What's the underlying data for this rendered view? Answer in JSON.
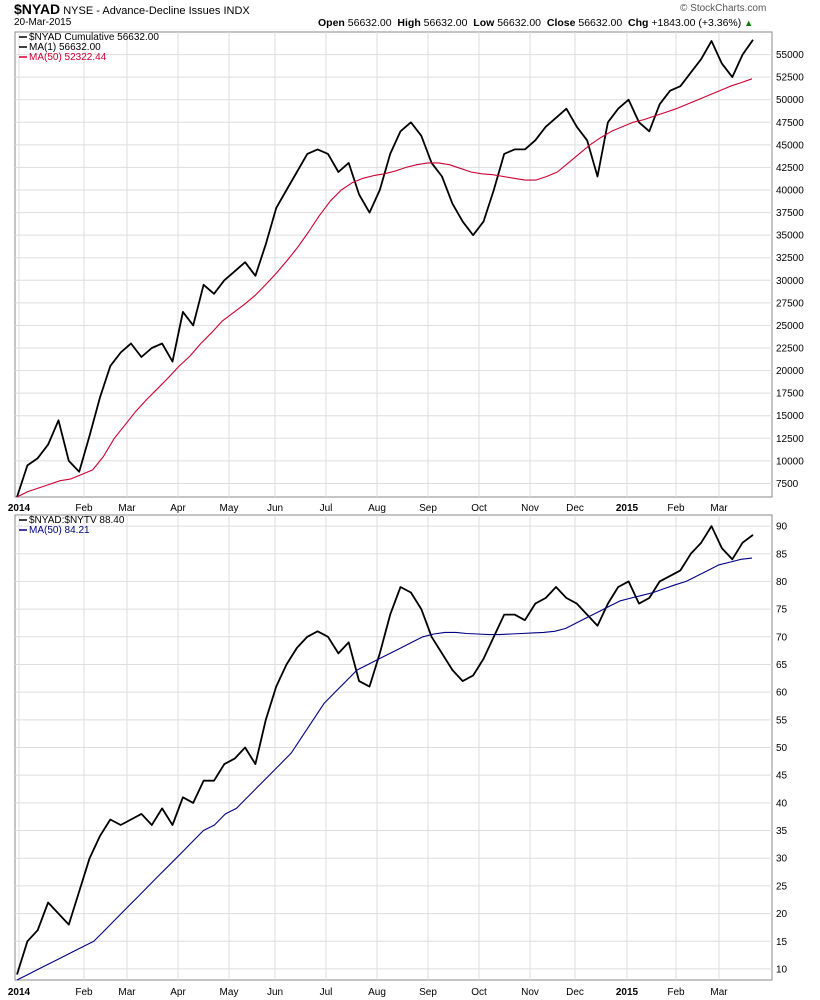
{
  "header": {
    "symbol": "$NYAD",
    "description": "NYSE - Advance-Decline Issues",
    "type": "INDX",
    "date": "20-Mar-2015",
    "open_label": "Open",
    "open": "56632.00",
    "high_label": "High",
    "high": "56632.00",
    "low_label": "Low",
    "low": "56632.00",
    "close_label": "Close",
    "close": "56632.00",
    "chg_label": "Chg",
    "chg": "+1843.00 (+3.36%)",
    "watermark": "© StockCharts.com"
  },
  "colors": {
    "price": "#000000",
    "ma_top": "#cc0033",
    "ma_bottom": "#000080",
    "grid": "#dddddd"
  },
  "chart_data": [
    {
      "type": "line",
      "legend": [
        "$NYAD Cumulative 56632.00",
        "MA(1) 56632.00",
        "MA(50) 52322.44"
      ],
      "ylim": [
        6000,
        57500
      ],
      "yticks": [
        7500,
        10000,
        12500,
        15000,
        17500,
        20000,
        22500,
        25000,
        27500,
        30000,
        32500,
        35000,
        37500,
        40000,
        42500,
        45000,
        47500,
        50000,
        52500,
        55000
      ],
      "xticks": [
        "2014",
        "Feb",
        "Mar",
        "Apr",
        "May",
        "Jun",
        "Jul",
        "Aug",
        "Sep",
        "Oct",
        "Nov",
        "Dec",
        "2015",
        "Feb",
        "Mar"
      ],
      "series": [
        {
          "values": [
            6000,
            9500,
            10300,
            11800,
            14500,
            10000,
            8800,
            12800,
            17000,
            20500,
            22000,
            23000,
            21500,
            22500,
            23000,
            21000,
            26500,
            25000,
            29500,
            28500,
            30000,
            31000,
            32000,
            30500,
            34000,
            38000,
            40000,
            42000,
            44000,
            44500,
            44000,
            42000,
            43000,
            39500,
            37500,
            40000,
            44000,
            46500,
            47500,
            46000,
            43000,
            41500,
            38500,
            36500,
            35000,
            36500,
            40000,
            44000,
            44500,
            44500,
            45500,
            47000,
            48000,
            49000,
            47000,
            45500,
            41500,
            47500,
            49000,
            50000,
            47500,
            46500,
            49500,
            51000,
            51500,
            53000,
            54500,
            56500,
            54000,
            52500,
            55000,
            56632
          ]
        },
        {
          "values": [
            6000,
            6600,
            7000,
            7400,
            7800,
            8000,
            8500,
            9000,
            10500,
            12500,
            14000,
            15500,
            16800,
            18000,
            19200,
            20500,
            21600,
            23000,
            24200,
            25500,
            26400,
            27300,
            28300,
            29500,
            30800,
            32200,
            33700,
            35400,
            37200,
            38800,
            40000,
            40800,
            41300,
            41600,
            41800,
            42100,
            42500,
            42800,
            43000,
            43000,
            42800,
            42400,
            42000,
            41800,
            41700,
            41500,
            41300,
            41100,
            41100,
            41500,
            42000,
            43000,
            44000,
            45000,
            45800,
            46500,
            47000,
            47500,
            47800,
            48200,
            48600,
            49000,
            49500,
            50000,
            50500,
            51000,
            51500,
            51900,
            52322
          ]
        }
      ]
    },
    {
      "type": "line",
      "legend": [
        "$NYAD:$NYTV 88.40",
        "MA(50) 84.21"
      ],
      "ylim": [
        8,
        92
      ],
      "yticks": [
        10,
        15,
        20,
        25,
        30,
        35,
        40,
        45,
        50,
        55,
        60,
        65,
        70,
        75,
        80,
        85,
        90
      ],
      "xticks": [
        "2014",
        "Feb",
        "Mar",
        "Apr",
        "May",
        "Jun",
        "Jul",
        "Aug",
        "Sep",
        "Oct",
        "Nov",
        "Dec",
        "2015",
        "Feb",
        "Mar"
      ],
      "series": [
        {
          "values": [
            9,
            15,
            17,
            22,
            20,
            18,
            24,
            30,
            34,
            37,
            36,
            37,
            38,
            36,
            39,
            36,
            41,
            40,
            44,
            44,
            47,
            48,
            50,
            47,
            55,
            61,
            65,
            68,
            70,
            71,
            70,
            67,
            69,
            62,
            61,
            67,
            74,
            79,
            78,
            75,
            70,
            67,
            64,
            62,
            63,
            66,
            70,
            74,
            74,
            73,
            76,
            77,
            79,
            77,
            76,
            74,
            72,
            76,
            79,
            80,
            76,
            77,
            80,
            81,
            82,
            85,
            87,
            90,
            86,
            84,
            87,
            88.4
          ]
        },
        {
          "values": [
            8,
            9,
            10,
            11,
            12,
            13,
            14,
            15,
            17,
            19,
            21,
            23,
            25,
            27,
            29,
            31,
            33,
            35,
            36,
            38,
            39,
            41,
            43,
            45,
            47,
            49,
            52,
            55,
            58,
            60,
            62,
            64,
            65,
            66,
            67,
            68,
            69,
            70,
            70.5,
            70.8,
            70.8,
            70.6,
            70.5,
            70.4,
            70.4,
            70.5,
            70.6,
            70.7,
            70.8,
            71,
            71.5,
            72.5,
            73.5,
            74.5,
            75.5,
            76.5,
            77,
            77.5,
            78,
            78.7,
            79.4,
            80,
            81,
            82,
            83,
            83.5,
            84,
            84.21
          ]
        }
      ]
    }
  ]
}
